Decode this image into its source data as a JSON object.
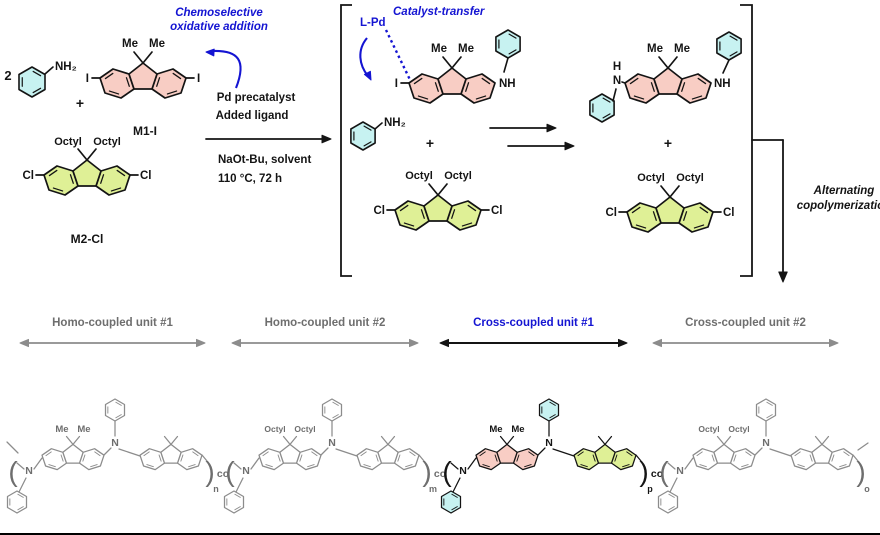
{
  "colors": {
    "pink": "#f8cdc4",
    "green": "#dff096",
    "cyan": "#c7f2f1",
    "blue": "#1414d2",
    "black": "#141414",
    "gray": "#8c8c8c",
    "gray_text": "#6e6e6e"
  },
  "scheme": {
    "coefficient": "2",
    "plus": "+",
    "atoms": {
      "me": "Me",
      "octyl": "Octyl",
      "cl": "Cl",
      "i": "I",
      "n": "N",
      "h": "H",
      "nh": "NH",
      "nh2": "NH₂"
    },
    "monomers": {
      "m1_label": "M1-I",
      "m2_label": "M2-Cl"
    },
    "blue_notes": {
      "chemoselective_line1": "Chemoselective",
      "chemoselective_line2": "oxidative addition",
      "l_pd": "L-Pd",
      "catalyst_transfer": "Catalyst-transfer"
    },
    "conditions": {
      "above_line1": "Pd  precatalyst",
      "above_line2": "Added ligand",
      "below_line1": "NaOt-Bu, solvent",
      "below_line2": "110 °C, 72 h"
    },
    "copolymerization_line1": "Alternating",
    "copolymerization_line2": "copolymerization"
  },
  "polymer": {
    "paren_open": "(",
    "paren_close": ")",
    "unit_labels": [
      {
        "label": "Homo-coupled unit #1",
        "subscript": "n",
        "link": "co"
      },
      {
        "label": "Homo-coupled unit #2",
        "subscript": "m",
        "link": "co"
      },
      {
        "label": "Cross-coupled unit #1",
        "subscript": "p",
        "link": "co"
      },
      {
        "label": "Cross-coupled unit #2",
        "subscript": "o",
        "link": ""
      }
    ]
  }
}
